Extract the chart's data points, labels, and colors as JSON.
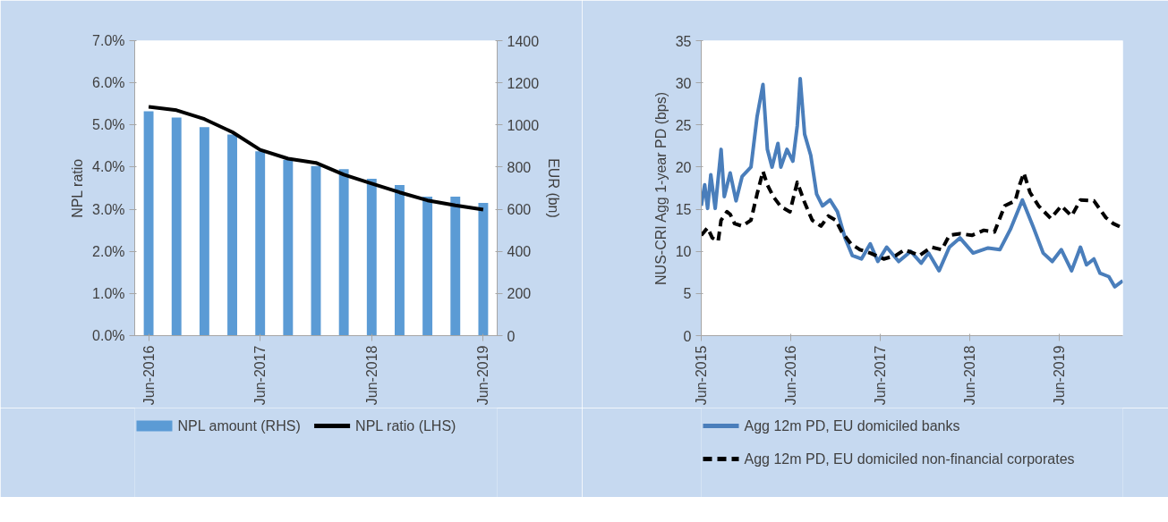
{
  "chart_data": [
    {
      "type": "bar",
      "categories": [
        "Jun-2016",
        null,
        null,
        null,
        "Jun-2017",
        null,
        null,
        null,
        "Jun-2018",
        null,
        null,
        null,
        "Jun-2019"
      ],
      "ylabel": "NPL ratio",
      "y2label": "EUR (bn)",
      "ylim": [
        0,
        7
      ],
      "yticks": [
        {
          "value": 0,
          "label": "0.0%"
        },
        {
          "value": 1,
          "label": "1.0%"
        },
        {
          "value": 2,
          "label": "2.0%"
        },
        {
          "value": 3,
          "label": "3.0%"
        },
        {
          "value": 4,
          "label": "4.0%"
        },
        {
          "value": 5,
          "label": "5.0%"
        },
        {
          "value": 6,
          "label": "6.0%"
        },
        {
          "value": 7,
          "label": "7.0%"
        }
      ],
      "y2lim": [
        0,
        1400
      ],
      "y2ticks": [
        0,
        200,
        400,
        600,
        800,
        1000,
        1200,
        1400
      ],
      "grid": false,
      "legend": "bottom",
      "series": [
        {
          "name": "NPL amount (RHS)",
          "type": "bar",
          "axis": "y2",
          "color": "#5b9bd5",
          "values": [
            1065,
            1035,
            990,
            955,
            875,
            835,
            805,
            790,
            745,
            715,
            660,
            660,
            630
          ]
        },
        {
          "name": "NPL ratio (LHS)",
          "type": "line",
          "axis": "y",
          "color": "#000000",
          "values": [
            5.43,
            5.35,
            5.14,
            4.83,
            4.41,
            4.2,
            4.1,
            3.82,
            3.61,
            3.4,
            3.21,
            3.09,
            2.99
          ]
        }
      ]
    },
    {
      "type": "line",
      "ylabel": "NUS-CRI Agg 1-year PD (bps)",
      "xlim": [
        "2015-06-01",
        "2020-02-16"
      ],
      "xticks": [
        {
          "value": "2015-06-01",
          "label": "Jun-2015"
        },
        {
          "value": "2016-06-01",
          "label": "Jun-2016"
        },
        {
          "value": "2017-06-01",
          "label": "Jun-2017"
        },
        {
          "value": "2018-06-01",
          "label": "Jun-2018"
        },
        {
          "value": "2019-06-01",
          "label": "Jun-2019"
        }
      ],
      "ylim": [
        0,
        35
      ],
      "yticks": [
        0,
        5,
        10,
        15,
        20,
        25,
        30,
        35
      ],
      "grid": false,
      "legend": "bottom",
      "series": [
        {
          "name": "Agg 12m PD, EU domiciled banks",
          "color": "#4a7ebb",
          "line_style": "solid",
          "x": [
            "2015-06-01",
            "2015-06-15",
            "2015-06-27",
            "2015-07-10",
            "2015-07-28",
            "2015-08-21",
            "2015-09-03",
            "2015-09-27",
            "2015-10-21",
            "2015-11-15",
            "2015-12-21",
            "2016-01-15",
            "2016-02-08",
            "2016-02-26",
            "2016-03-16",
            "2016-04-09",
            "2016-04-21",
            "2016-05-16",
            "2016-06-09",
            "2016-06-27",
            "2016-07-09",
            "2016-07-27",
            "2016-08-21",
            "2016-09-14",
            "2016-10-08",
            "2016-11-08",
            "2016-12-08",
            "2017-01-08",
            "2017-02-07",
            "2017-03-16",
            "2017-04-21",
            "2017-05-22",
            "2017-06-27",
            "2017-08-15",
            "2017-10-03",
            "2017-11-15",
            "2017-12-15",
            "2018-01-27",
            "2018-03-10",
            "2018-04-22",
            "2018-06-15",
            "2018-08-15",
            "2018-10-02",
            "2018-11-14",
            "2019-01-02",
            "2019-02-14",
            "2019-03-28",
            "2019-05-04",
            "2019-06-10",
            "2019-07-22",
            "2019-08-27",
            "2019-09-21",
            "2019-10-21",
            "2019-11-15",
            "2019-12-21",
            "2020-01-14",
            "2020-02-16"
          ],
          "values": [
            15.4,
            17.9,
            15.1,
            19.1,
            15.1,
            22.1,
            16.5,
            19.3,
            16.0,
            18.9,
            20.0,
            26.0,
            29.8,
            22.1,
            20.0,
            22.8,
            20.0,
            22.1,
            20.7,
            24.9,
            30.5,
            23.9,
            21.4,
            16.8,
            15.4,
            16.1,
            14.7,
            11.6,
            9.5,
            9.1,
            10.9,
            8.8,
            10.5,
            8.8,
            10.0,
            8.6,
            9.8,
            7.7,
            10.5,
            11.6,
            9.8,
            10.4,
            10.2,
            12.6,
            16.1,
            13.0,
            9.8,
            8.8,
            10.2,
            7.7,
            10.5,
            8.4,
            9.1,
            7.4,
            7.0,
            5.8,
            6.5
          ]
        },
        {
          "name": "Agg 12m PD, EU domiciled non-financial corporates",
          "color": "#000000",
          "line_style": "dashed",
          "x": [
            "2015-06-01",
            "2015-06-27",
            "2015-07-16",
            "2015-08-09",
            "2015-08-21",
            "2015-09-14",
            "2015-09-27",
            "2015-10-15",
            "2015-11-15",
            "2015-12-21",
            "2016-01-15",
            "2016-02-08",
            "2016-02-26",
            "2016-03-21",
            "2016-04-21",
            "2016-05-28",
            "2016-06-27",
            "2016-07-27",
            "2016-08-27",
            "2016-10-02",
            "2016-11-01",
            "2016-12-01",
            "2016-12-26",
            "2017-02-01",
            "2017-03-10",
            "2017-04-21",
            "2017-06-15",
            "2017-08-03",
            "2017-09-08",
            "2017-11-08",
            "2017-12-26",
            "2018-02-07",
            "2018-03-10",
            "2018-04-22",
            "2018-06-10",
            "2018-07-29",
            "2018-09-10",
            "2018-10-22",
            "2018-12-04",
            "2018-12-22",
            "2019-01-08",
            "2019-02-02",
            "2019-03-09",
            "2019-04-28",
            "2019-06-10",
            "2019-07-22",
            "2019-08-27",
            "2019-10-21",
            "2019-12-09",
            "2020-01-08",
            "2020-02-13"
          ],
          "values": [
            11.9,
            12.8,
            11.6,
            11.2,
            13.7,
            14.7,
            14.4,
            13.3,
            13.0,
            13.7,
            16.8,
            19.5,
            17.9,
            16.5,
            15.3,
            14.7,
            18.2,
            15.8,
            13.7,
            13.0,
            14.2,
            13.7,
            12.3,
            10.9,
            10.2,
            9.8,
            9.1,
            9.5,
            10.2,
            9.5,
            10.5,
            10.2,
            11.9,
            12.1,
            11.9,
            12.5,
            12.3,
            15.4,
            16.0,
            17.9,
            19.3,
            17.0,
            15.4,
            13.9,
            15.4,
            14.2,
            16.1,
            16.0,
            14.0,
            13.3,
            12.8
          ]
        }
      ]
    }
  ]
}
